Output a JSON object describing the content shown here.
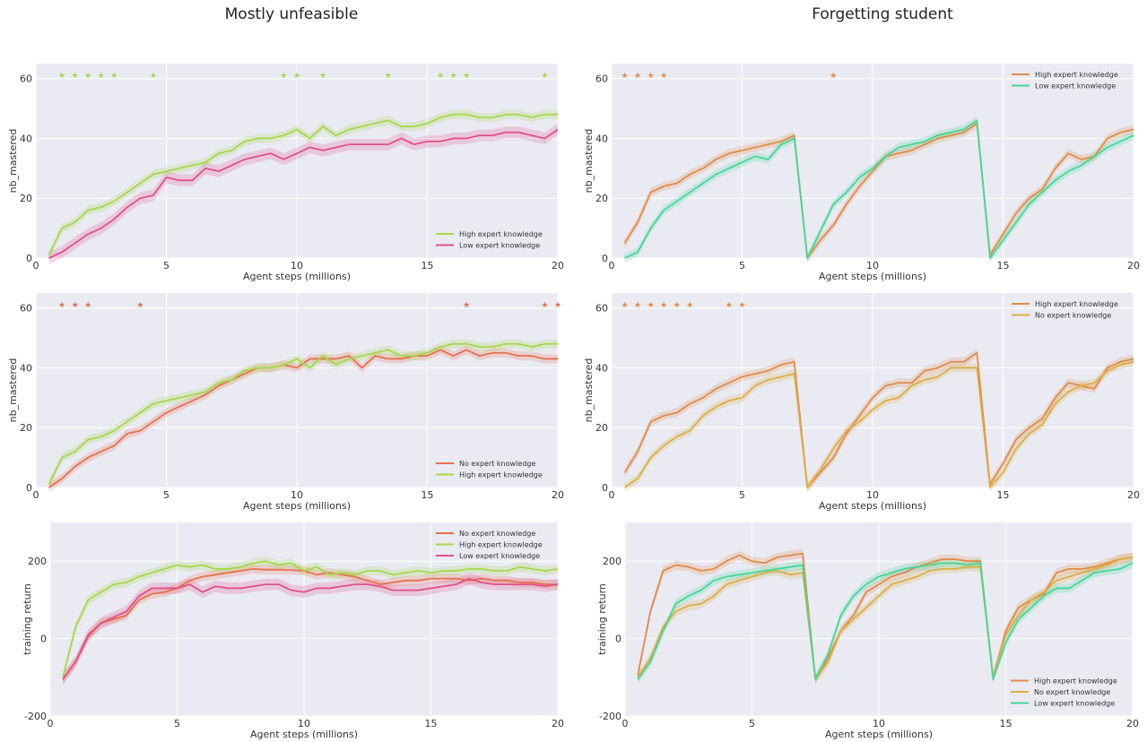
{
  "titles": {
    "left": "Mostly unfeasible",
    "right": "Forgetting student"
  },
  "colors": {
    "High expert knowledge (green)": "#a5d84a",
    "Low expert knowledge (pink)": "#e0508a",
    "No expert knowledge (red)": "#e6704f",
    "High expert knowledge (orange)": "#e08c4a",
    "No expert knowledge (yellow)": "#dcae45",
    "Low expert knowledge (teal)": "#45d894"
  },
  "chart_data": [
    {
      "type": "line",
      "xlabel": "Agent steps (millions)",
      "ylabel": "nb_mastered",
      "xlim": [
        0,
        20
      ],
      "ylim": [
        0,
        65
      ],
      "xticks": [
        0,
        5,
        10,
        15,
        20
      ],
      "yticks": [
        0,
        20,
        40,
        60
      ],
      "legend_position": "bottom-right",
      "x": [
        0.5,
        1,
        1.5,
        2,
        2.5,
        3,
        3.5,
        4,
        4.5,
        5,
        5.5,
        6,
        6.5,
        7,
        7.5,
        8,
        8.5,
        9,
        9.5,
        10,
        10.5,
        11,
        11.5,
        12,
        12.5,
        13,
        13.5,
        14,
        14.5,
        15,
        15.5,
        16,
        16.5,
        17,
        17.5,
        18,
        18.5,
        19,
        19.5,
        20
      ],
      "series": [
        {
          "name": "High expert knowledge",
          "color": "#a5d84a",
          "band": 1.5,
          "values": [
            1,
            10,
            12,
            16,
            17,
            19,
            22,
            25,
            28,
            29,
            30,
            31,
            32,
            35,
            36,
            39,
            40,
            40,
            41,
            43,
            40,
            44,
            41,
            43,
            44,
            45,
            46,
            44,
            44,
            45,
            47,
            48,
            48,
            47,
            47,
            48,
            48,
            47,
            48,
            48
          ]
        },
        {
          "name": "Low expert knowledge",
          "color": "#e0508a",
          "band": 2,
          "values": [
            0,
            2,
            5,
            8,
            10,
            13,
            17,
            20,
            21,
            27,
            26,
            26,
            30,
            29,
            31,
            33,
            34,
            35,
            33,
            35,
            37,
            36,
            37,
            38,
            38,
            38,
            38,
            40,
            38,
            39,
            39,
            40,
            40,
            41,
            41,
            42,
            42,
            41,
            40,
            43
          ]
        }
      ],
      "stars": [
        {
          "color": "#a5d84a",
          "x": [
            1,
            1.5,
            2,
            2.5,
            3,
            4.5,
            9.5,
            10,
            11,
            13.5,
            15.5,
            16,
            16.5,
            19.5
          ]
        }
      ]
    },
    {
      "type": "line",
      "xlabel": "Agent steps (millions)",
      "ylabel": "nb_mastered",
      "xlim": [
        0,
        20
      ],
      "ylim": [
        0,
        65
      ],
      "xticks": [
        0,
        5,
        10,
        15,
        20
      ],
      "yticks": [
        0,
        20,
        40,
        60
      ],
      "legend_position": "top-right",
      "x": [
        0.5,
        1,
        1.5,
        2,
        2.5,
        3,
        3.5,
        4,
        4.5,
        5,
        5.5,
        6,
        6.5,
        7,
        7.5,
        8,
        8.5,
        9,
        9.5,
        10,
        10.5,
        11,
        11.5,
        12,
        12.5,
        13,
        13.5,
        14,
        14.5,
        15,
        15.5,
        16,
        16.5,
        17,
        17.5,
        18,
        18.5,
        19,
        19.5,
        20
      ],
      "series": [
        {
          "name": "High expert knowledge",
          "color": "#e08c4a",
          "band": 1.5,
          "values": [
            5,
            12,
            22,
            24,
            25,
            28,
            30,
            33,
            35,
            36,
            37,
            38,
            39,
            41,
            0,
            6,
            11,
            18,
            24,
            29,
            34,
            35,
            36,
            38,
            40,
            41,
            42,
            45,
            1,
            8,
            15,
            20,
            23,
            30,
            35,
            33,
            34,
            40,
            42,
            43
          ]
        },
        {
          "name": "Low expert knowledge",
          "color": "#45d894",
          "band": 1.5,
          "values": [
            0,
            2,
            10,
            16,
            19,
            22,
            25,
            28,
            30,
            32,
            34,
            33,
            38,
            40,
            0,
            9,
            18,
            22,
            27,
            30,
            34,
            37,
            38,
            39,
            41,
            42,
            43,
            46,
            0,
            6,
            12,
            18,
            22,
            26,
            29,
            31,
            34,
            37,
            39,
            41
          ]
        }
      ],
      "stars": [
        {
          "color": "#e08c4a",
          "x": [
            0.5,
            1,
            1.5,
            2,
            8.5
          ]
        }
      ]
    },
    {
      "type": "line",
      "xlabel": "Agent steps (millions)",
      "ylabel": "nb_mastered",
      "xlim": [
        0,
        20
      ],
      "ylim": [
        0,
        65
      ],
      "xticks": [
        0,
        5,
        10,
        15,
        20
      ],
      "yticks": [
        0,
        20,
        40,
        60
      ],
      "legend_position": "bottom-right",
      "x": [
        0.5,
        1,
        1.5,
        2,
        2.5,
        3,
        3.5,
        4,
        4.5,
        5,
        5.5,
        6,
        6.5,
        7,
        7.5,
        8,
        8.5,
        9,
        9.5,
        10,
        10.5,
        11,
        11.5,
        12,
        12.5,
        13,
        13.5,
        14,
        14.5,
        15,
        15.5,
        16,
        16.5,
        17,
        17.5,
        18,
        18.5,
        19,
        19.5,
        20
      ],
      "series": [
        {
          "name": "No expert knowledge",
          "color": "#e6704f",
          "band": 1.5,
          "values": [
            0,
            3,
            7,
            10,
            12,
            14,
            18,
            19,
            22,
            25,
            27,
            29,
            31,
            34,
            36,
            38,
            40,
            40,
            41,
            40,
            43,
            43,
            43,
            44,
            40,
            44,
            43,
            43,
            44,
            44,
            46,
            44,
            46,
            44,
            45,
            45,
            44,
            44,
            43,
            43
          ]
        },
        {
          "name": "High expert knowledge",
          "color": "#a5d84a",
          "band": 1.5,
          "values": [
            1,
            10,
            12,
            16,
            17,
            19,
            22,
            25,
            28,
            29,
            30,
            31,
            32,
            35,
            36,
            39,
            40,
            40,
            41,
            43,
            40,
            44,
            41,
            43,
            44,
            45,
            46,
            44,
            44,
            45,
            47,
            48,
            48,
            47,
            47,
            48,
            48,
            47,
            48,
            48
          ]
        }
      ],
      "stars": [
        {
          "color": "#e6704f",
          "x": [
            1,
            1.5,
            2,
            4,
            16.5,
            19.5,
            20
          ]
        }
      ]
    },
    {
      "type": "line",
      "xlabel": "Agent steps (millions)",
      "ylabel": "nb_mastered",
      "xlim": [
        0,
        20
      ],
      "ylim": [
        0,
        65
      ],
      "xticks": [
        0,
        5,
        10,
        15,
        20
      ],
      "yticks": [
        0,
        20,
        40,
        60
      ],
      "legend_position": "top-right",
      "x": [
        0.5,
        1,
        1.5,
        2,
        2.5,
        3,
        3.5,
        4,
        4.5,
        5,
        5.5,
        6,
        6.5,
        7,
        7.5,
        8,
        8.5,
        9,
        9.5,
        10,
        10.5,
        11,
        11.5,
        12,
        12.5,
        13,
        13.5,
        14,
        14.5,
        15,
        15.5,
        16,
        16.5,
        17,
        17.5,
        18,
        18.5,
        19,
        19.5,
        20
      ],
      "series": [
        {
          "name": "High expert knowledge",
          "color": "#e08c4a",
          "band": 1.5,
          "values": [
            5,
            12,
            22,
            24,
            25,
            28,
            30,
            33,
            35,
            37,
            38,
            39,
            41,
            42,
            0,
            5,
            10,
            18,
            24,
            30,
            34,
            35,
            35,
            39,
            40,
            42,
            42,
            45,
            1,
            8,
            16,
            20,
            23,
            30,
            35,
            34,
            33,
            40,
            42,
            43
          ]
        },
        {
          "name": "No expert knowledge",
          "color": "#dcae45",
          "band": 1.5,
          "values": [
            0,
            3,
            10,
            14,
            17,
            19,
            24,
            27,
            29,
            30,
            34,
            36,
            37,
            38,
            0,
            6,
            13,
            19,
            22,
            26,
            29,
            30,
            34,
            36,
            37,
            40,
            40,
            40,
            0,
            5,
            13,
            18,
            21,
            28,
            32,
            34,
            35,
            39,
            41,
            42
          ]
        }
      ],
      "stars": [
        {
          "color": "#e08c4a",
          "x": [
            0.5,
            1,
            1.5,
            2,
            2.5,
            3,
            4.5,
            5
          ]
        }
      ]
    },
    {
      "type": "line",
      "xlabel": "Agent steps (millions)",
      "ylabel": "training return",
      "xlim": [
        0,
        20
      ],
      "ylim": [
        -200,
        300
      ],
      "xticks": [
        0,
        5,
        10,
        15,
        20
      ],
      "yticks": [
        -200,
        0,
        200
      ],
      "legend_position": "top-right",
      "x": [
        0.5,
        1,
        1.5,
        2,
        2.5,
        3,
        3.5,
        4,
        4.5,
        5,
        5.5,
        6,
        6.5,
        7,
        7.5,
        8,
        8.5,
        9,
        9.5,
        10,
        10.5,
        11,
        11.5,
        12,
        12.5,
        13,
        13.5,
        14,
        14.5,
        15,
        15.5,
        16,
        16.5,
        17,
        17.5,
        18,
        18.5,
        19,
        19.5,
        20
      ],
      "series": [
        {
          "name": "No expert knowledge",
          "color": "#e6704f",
          "band": 12,
          "values": [
            -105,
            -60,
            5,
            40,
            50,
            60,
            100,
            115,
            120,
            130,
            150,
            160,
            165,
            170,
            175,
            180,
            178,
            178,
            177,
            175,
            165,
            170,
            165,
            160,
            150,
            140,
            145,
            150,
            150,
            155,
            155,
            155,
            150,
            155,
            150,
            150,
            145,
            145,
            140,
            140
          ]
        },
        {
          "name": "High expert knowledge",
          "color": "#a5d84a",
          "band": 12,
          "values": [
            -100,
            30,
            100,
            120,
            140,
            145,
            160,
            170,
            180,
            190,
            185,
            190,
            180,
            180,
            185,
            195,
            200,
            190,
            195,
            175,
            185,
            165,
            170,
            165,
            175,
            175,
            165,
            170,
            175,
            170,
            175,
            175,
            180,
            180,
            175,
            175,
            185,
            180,
            175,
            180
          ]
        },
        {
          "name": "Low expert knowledge",
          "color": "#e0508a",
          "band": 15,
          "values": [
            -105,
            -60,
            10,
            40,
            55,
            70,
            110,
            130,
            130,
            130,
            140,
            120,
            135,
            130,
            130,
            135,
            140,
            140,
            125,
            120,
            130,
            130,
            135,
            140,
            140,
            135,
            125,
            125,
            125,
            130,
            135,
            140,
            155,
            145,
            140,
            140,
            140,
            140,
            135,
            140
          ]
        }
      ]
    },
    {
      "type": "line",
      "xlabel": "Agent steps (millions)",
      "ylabel": "training return",
      "xlim": [
        0,
        20
      ],
      "ylim": [
        -200,
        300
      ],
      "xticks": [
        0,
        5,
        10,
        15,
        20
      ],
      "yticks": [
        -200,
        0,
        200
      ],
      "legend_position": "bottom-right",
      "x": [
        0.5,
        1,
        1.5,
        2,
        2.5,
        3,
        3.5,
        4,
        4.5,
        5,
        5.5,
        6,
        6.5,
        7,
        7.5,
        8,
        8.5,
        9,
        9.5,
        10,
        10.5,
        11,
        11.5,
        12,
        12.5,
        13,
        13.5,
        14,
        14.5,
        15,
        15.5,
        16,
        16.5,
        17,
        17.5,
        18,
        18.5,
        19,
        19.5,
        20
      ],
      "series": [
        {
          "name": "High expert knowledge",
          "color": "#e08c4a",
          "band": 12,
          "values": [
            -95,
            70,
            175,
            190,
            185,
            175,
            180,
            200,
            215,
            200,
            195,
            210,
            215,
            220,
            -105,
            -50,
            20,
            60,
            120,
            140,
            160,
            170,
            185,
            195,
            205,
            205,
            200,
            200,
            -100,
            20,
            80,
            100,
            115,
            170,
            180,
            180,
            185,
            195,
            205,
            210
          ]
        },
        {
          "name": "No expert knowledge",
          "color": "#dcae45",
          "band": 12,
          "values": [
            -100,
            -50,
            30,
            70,
            85,
            90,
            110,
            140,
            150,
            160,
            170,
            175,
            165,
            170,
            -105,
            -60,
            20,
            50,
            80,
            110,
            140,
            150,
            160,
            175,
            180,
            180,
            185,
            185,
            -100,
            10,
            60,
            100,
            120,
            150,
            160,
            170,
            180,
            190,
            205,
            210
          ]
        },
        {
          "name": "Low expert knowledge",
          "color": "#45d894",
          "band": 12,
          "values": [
            -105,
            -60,
            20,
            90,
            110,
            125,
            150,
            160,
            165,
            170,
            175,
            180,
            185,
            190,
            -105,
            -40,
            60,
            110,
            140,
            160,
            170,
            180,
            185,
            190,
            195,
            195,
            190,
            195,
            -105,
            -10,
            50,
            80,
            110,
            130,
            130,
            150,
            170,
            175,
            180,
            195
          ]
        }
      ]
    }
  ]
}
